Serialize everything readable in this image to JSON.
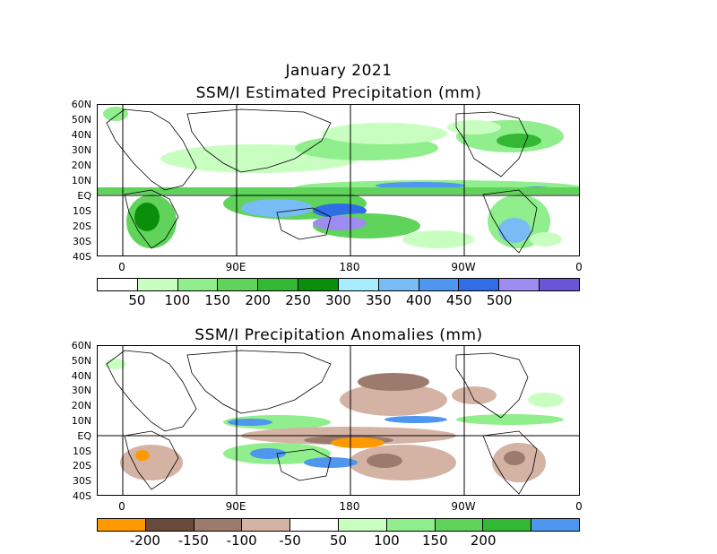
{
  "header": {
    "month": "January 2021"
  },
  "panels": [
    {
      "title": "SSM/I Estimated Precipitation (mm)",
      "lat_labels": [
        "60N",
        "50N",
        "40N",
        "30N",
        "20N",
        "10N",
        "EQ",
        "10S",
        "20S",
        "30S",
        "40S"
      ],
      "lon_labels": [
        "0",
        "90E",
        "180",
        "90W",
        "0"
      ],
      "legend": {
        "colors": [
          "#ffffff",
          "#c8ffc0",
          "#90ee8c",
          "#5fd35a",
          "#33b833",
          "#0b8f0b",
          "#a8ecff",
          "#78bbf5",
          "#4f96ee",
          "#2f6ee6",
          "#9e8df0",
          "#6a55d8"
        ],
        "labels": [
          "50",
          "100",
          "150",
          "200",
          "250",
          "300",
          "350",
          "400",
          "450",
          "500"
        ]
      }
    },
    {
      "title": "SSM/I Precipitation Anomalies (mm)",
      "lat_labels": [
        "60N",
        "50N",
        "40N",
        "30N",
        "20N",
        "10N",
        "EQ",
        "10S",
        "20S",
        "30S",
        "40S"
      ],
      "lon_labels": [
        "0",
        "90E",
        "180",
        "90W",
        "0"
      ],
      "legend": {
        "colors": [
          "#ff9900",
          "#6b4a3e",
          "#9c7b6e",
          "#d4b3a5",
          "#ffffff",
          "#c8ffc0",
          "#90ee8c",
          "#5fd35a",
          "#33b833",
          "#4f96ee"
        ],
        "labels": [
          "-200",
          "-150",
          "-100",
          "-50",
          "50",
          "100",
          "150",
          "200"
        ]
      }
    }
  ]
}
